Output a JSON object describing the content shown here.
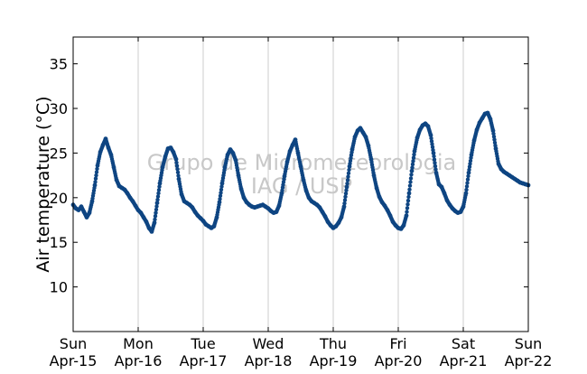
{
  "chart_data": {
    "type": "scatter",
    "ylabel": "Air temperature (°C)",
    "xlabel": "",
    "xlim": [
      "2012-04-15",
      "2012-04-22"
    ],
    "ylim": [
      5,
      38
    ],
    "yticks": [
      10,
      15,
      20,
      25,
      30,
      35
    ],
    "xticks": [
      {
        "date": "2012-04-15",
        "day": "Sun",
        "label": "Apr-15"
      },
      {
        "date": "2012-04-16",
        "day": "Mon",
        "label": "Apr-16"
      },
      {
        "date": "2012-04-17",
        "day": "Tue",
        "label": "Apr-17"
      },
      {
        "date": "2012-04-18",
        "day": "Wed",
        "label": "Apr-18"
      },
      {
        "date": "2012-04-19",
        "day": "Thu",
        "label": "Apr-19"
      },
      {
        "date": "2012-04-20",
        "day": "Fri",
        "label": "Apr-20"
      },
      {
        "date": "2012-04-21",
        "day": "Sat",
        "label": "Apr-21"
      },
      {
        "date": "2012-04-22",
        "day": "Sun",
        "label": "Apr-22"
      }
    ],
    "grid": "vertical",
    "marker_color": "#0e4582",
    "watermark": [
      "Grupo de Micrometeorologia",
      "IAG / USP"
    ],
    "series": [
      {
        "x": [
          "2012-04-15 00:00",
          "2012-04-15 01:00",
          "2012-04-15 02:00",
          "2012-04-15 03:00",
          "2012-04-15 04:00",
          "2012-04-15 05:00",
          "2012-04-15 06:00",
          "2012-04-15 07:00",
          "2012-04-15 08:00",
          "2012-04-15 09:00",
          "2012-04-15 10:00",
          "2012-04-15 11:00",
          "2012-04-15 12:00",
          "2012-04-15 13:00",
          "2012-04-15 14:00",
          "2012-04-15 15:00",
          "2012-04-15 16:00",
          "2012-04-15 17:00",
          "2012-04-15 18:00",
          "2012-04-15 19:00",
          "2012-04-15 20:00",
          "2012-04-15 21:00",
          "2012-04-15 22:00",
          "2012-04-15 23:00",
          "2012-04-16 00:00",
          "2012-04-16 01:00",
          "2012-04-16 02:00",
          "2012-04-16 03:00",
          "2012-04-16 04:00",
          "2012-04-16 05:00",
          "2012-04-16 06:00",
          "2012-04-16 07:00",
          "2012-04-16 08:00",
          "2012-04-16 09:00",
          "2012-04-16 10:00",
          "2012-04-16 11:00",
          "2012-04-16 12:00",
          "2012-04-16 13:00",
          "2012-04-16 14:00",
          "2012-04-16 15:00",
          "2012-04-16 16:00",
          "2012-04-16 17:00",
          "2012-04-16 18:00",
          "2012-04-16 19:00",
          "2012-04-16 20:00",
          "2012-04-16 21:00",
          "2012-04-16 22:00",
          "2012-04-16 23:00",
          "2012-04-17 00:00",
          "2012-04-17 01:00",
          "2012-04-17 02:00",
          "2012-04-17 03:00",
          "2012-04-17 04:00",
          "2012-04-17 05:00",
          "2012-04-17 06:00",
          "2012-04-17 07:00",
          "2012-04-17 08:00",
          "2012-04-17 09:00",
          "2012-04-17 10:00",
          "2012-04-17 11:00",
          "2012-04-17 12:00",
          "2012-04-17 13:00",
          "2012-04-17 14:00",
          "2012-04-17 15:00",
          "2012-04-17 16:00",
          "2012-04-17 17:00",
          "2012-04-17 18:00",
          "2012-04-17 19:00",
          "2012-04-17 20:00",
          "2012-04-17 21:00",
          "2012-04-17 22:00",
          "2012-04-17 23:00",
          "2012-04-18 00:00",
          "2012-04-18 01:00",
          "2012-04-18 02:00",
          "2012-04-18 03:00",
          "2012-04-18 04:00",
          "2012-04-18 05:00",
          "2012-04-18 06:00",
          "2012-04-18 07:00",
          "2012-04-18 08:00",
          "2012-04-18 09:00",
          "2012-04-18 10:00",
          "2012-04-18 11:00",
          "2012-04-18 12:00",
          "2012-04-18 13:00",
          "2012-04-18 14:00",
          "2012-04-18 15:00",
          "2012-04-18 16:00",
          "2012-04-18 17:00",
          "2012-04-18 18:00",
          "2012-04-18 19:00",
          "2012-04-18 20:00",
          "2012-04-18 21:00",
          "2012-04-18 22:00",
          "2012-04-18 23:00",
          "2012-04-19 00:00",
          "2012-04-19 01:00",
          "2012-04-19 02:00",
          "2012-04-19 03:00",
          "2012-04-19 04:00",
          "2012-04-19 05:00",
          "2012-04-19 06:00",
          "2012-04-19 07:00",
          "2012-04-19 08:00",
          "2012-04-19 09:00",
          "2012-04-19 10:00",
          "2012-04-19 11:00",
          "2012-04-19 12:00",
          "2012-04-19 13:00",
          "2012-04-19 14:00",
          "2012-04-19 15:00",
          "2012-04-19 16:00",
          "2012-04-19 17:00",
          "2012-04-19 18:00",
          "2012-04-19 19:00",
          "2012-04-19 20:00",
          "2012-04-19 21:00",
          "2012-04-19 22:00",
          "2012-04-19 23:00",
          "2012-04-20 00:00",
          "2012-04-20 01:00",
          "2012-04-20 02:00",
          "2012-04-20 03:00",
          "2012-04-20 04:00",
          "2012-04-20 05:00",
          "2012-04-20 06:00",
          "2012-04-20 07:00",
          "2012-04-20 08:00",
          "2012-04-20 09:00",
          "2012-04-20 10:00",
          "2012-04-20 11:00",
          "2012-04-20 12:00",
          "2012-04-20 13:00",
          "2012-04-20 14:00",
          "2012-04-20 15:00",
          "2012-04-20 16:00",
          "2012-04-20 17:00",
          "2012-04-20 18:00",
          "2012-04-20 19:00",
          "2012-04-20 20:00",
          "2012-04-20 21:00",
          "2012-04-20 22:00",
          "2012-04-20 23:00",
          "2012-04-21 00:00",
          "2012-04-21 01:00",
          "2012-04-21 02:00",
          "2012-04-21 03:00",
          "2012-04-21 04:00",
          "2012-04-21 05:00",
          "2012-04-21 06:00",
          "2012-04-21 07:00",
          "2012-04-21 08:00",
          "2012-04-21 09:00",
          "2012-04-21 10:00",
          "2012-04-21 11:00",
          "2012-04-21 12:00",
          "2012-04-21 13:00",
          "2012-04-21 14:00",
          "2012-04-21 15:00",
          "2012-04-21 16:00",
          "2012-04-21 17:00",
          "2012-04-21 18:00",
          "2012-04-21 19:00",
          "2012-04-21 20:00",
          "2012-04-21 21:00",
          "2012-04-21 22:00",
          "2012-04-21 23:00",
          "2012-04-22 00:00"
        ],
        "y": [
          19.2,
          18.8,
          18.6,
          19.0,
          18.4,
          17.8,
          18.3,
          19.6,
          21.4,
          23.6,
          25.1,
          25.9,
          26.6,
          25.6,
          24.8,
          23.4,
          22.0,
          21.3,
          21.1,
          20.9,
          20.5,
          20.0,
          19.6,
          19.1,
          18.6,
          18.3,
          17.8,
          17.3,
          16.6,
          16.2,
          17.2,
          19.4,
          21.6,
          23.4,
          24.6,
          25.5,
          25.6,
          25.1,
          24.3,
          22.1,
          20.4,
          19.6,
          19.4,
          19.2,
          18.9,
          18.4,
          18.0,
          17.7,
          17.4,
          17.0,
          16.8,
          16.6,
          16.8,
          17.8,
          19.5,
          21.6,
          23.4,
          24.8,
          25.4,
          25.0,
          24.2,
          22.5,
          21.0,
          20.0,
          19.5,
          19.2,
          19.0,
          18.9,
          19.0,
          19.1,
          19.2,
          19.0,
          18.8,
          18.5,
          18.3,
          18.4,
          19.1,
          20.5,
          22.4,
          24.0,
          25.2,
          25.9,
          26.5,
          25.0,
          23.5,
          22.0,
          20.8,
          20.0,
          19.6,
          19.4,
          19.2,
          18.9,
          18.4,
          17.9,
          17.3,
          16.9,
          16.6,
          16.8,
          17.2,
          17.8,
          19.0,
          21.2,
          23.5,
          25.4,
          26.8,
          27.5,
          27.8,
          27.3,
          26.8,
          25.8,
          24.3,
          22.5,
          21.1,
          20.1,
          19.5,
          19.1,
          18.6,
          18.0,
          17.3,
          16.9,
          16.6,
          16.5,
          16.9,
          18.0,
          20.5,
          23.0,
          25.2,
          26.7,
          27.6,
          28.1,
          28.3,
          28.0,
          27.0,
          25.0,
          22.8,
          21.5,
          21.2,
          20.5,
          19.7,
          19.2,
          18.8,
          18.5,
          18.3,
          18.4,
          19.0,
          20.5,
          22.8,
          24.8,
          26.4,
          27.6,
          28.4,
          28.9,
          29.4,
          29.5,
          28.8,
          27.5,
          25.5,
          23.8,
          23.2,
          22.9,
          22.7,
          22.5,
          22.3,
          22.1,
          21.9,
          21.7,
          21.6,
          21.5,
          21.4
        ]
      }
    ]
  }
}
